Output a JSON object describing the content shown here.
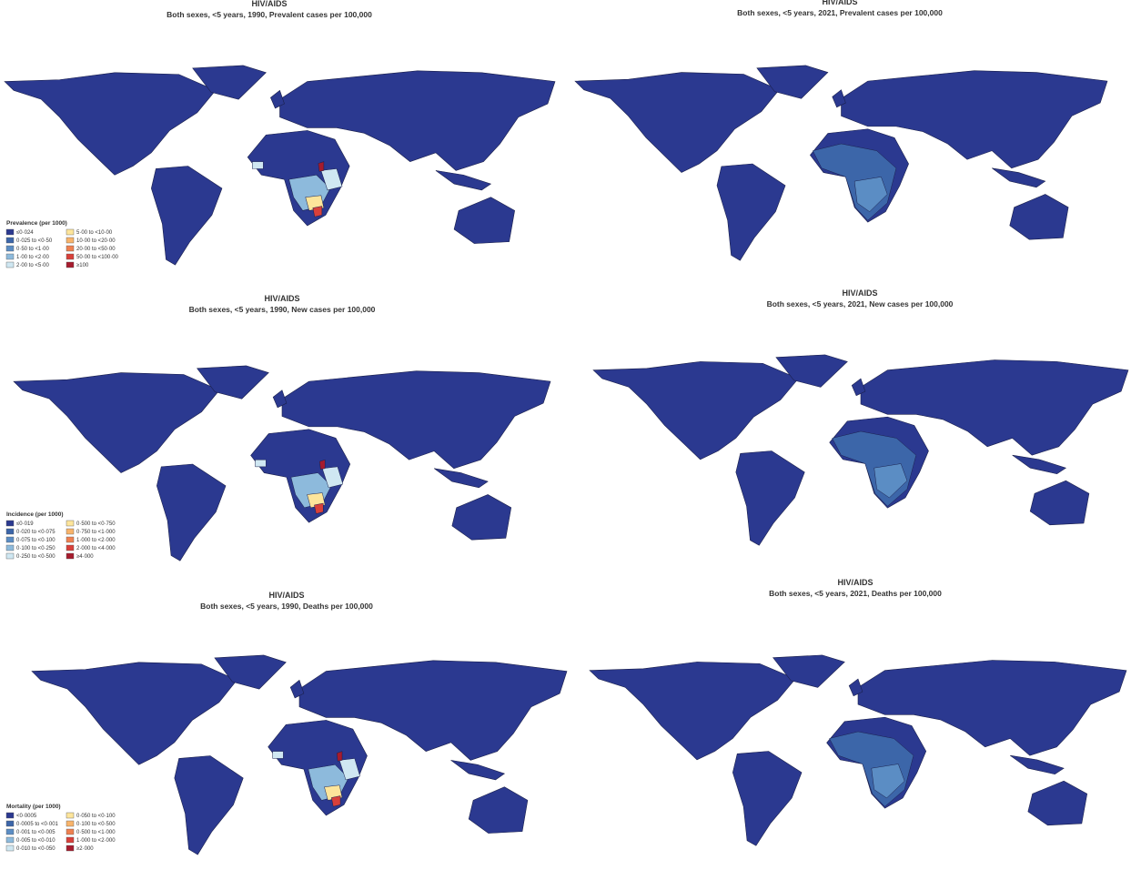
{
  "panels": [
    {
      "title": "HIV/AIDS",
      "subtitle": "Both sexes, <5 years, 1990, Prevalent cases per 100,000",
      "legend": {
        "title": "Prevalence (per 1000)",
        "items": [
          {
            "label": "≤0·024",
            "color": "#2b3990"
          },
          {
            "label": "0·025 to <0·50",
            "color": "#3c66a9"
          },
          {
            "label": "0·50 to <1·00",
            "color": "#5b8dc4"
          },
          {
            "label": "1·00 to <2·00",
            "color": "#8dbadc"
          },
          {
            "label": "2·00 to <5·00",
            "color": "#cfe7f2"
          },
          {
            "label": "5·00 to <10·00",
            "color": "#fde59b"
          },
          {
            "label": "10·00 to <20·00",
            "color": "#f8b46b"
          },
          {
            "label": "20·00 to <50·00",
            "color": "#ef8150"
          },
          {
            "label": "50·00 to <100·00",
            "color": "#d8403a"
          },
          {
            "label": "≥100",
            "color": "#a61b2d"
          }
        ]
      }
    },
    {
      "title": "HIV/AIDS",
      "subtitle": "Both sexes, <5 years, 2021, Prevalent cases per 100,000"
    },
    {
      "title": "HIV/AIDS",
      "subtitle": "Both sexes, <5 years, 1990, New cases per 100,000",
      "legend": {
        "title": "Incidence (per 1000)",
        "items": [
          {
            "label": "≤0·019",
            "color": "#2b3990"
          },
          {
            "label": "0·020 to <0·075",
            "color": "#3c66a9"
          },
          {
            "label": "0·075 to <0·100",
            "color": "#5b8dc4"
          },
          {
            "label": "0·100 to <0·250",
            "color": "#8dbadc"
          },
          {
            "label": "0·250 to <0·500",
            "color": "#cfe7f2"
          },
          {
            "label": "0·500 to <0·750",
            "color": "#fde59b"
          },
          {
            "label": "0·750 to <1·000",
            "color": "#f8b46b"
          },
          {
            "label": "1·000 to <2·000",
            "color": "#ef8150"
          },
          {
            "label": "2·000 to <4·000",
            "color": "#d8403a"
          },
          {
            "label": "≥4·000",
            "color": "#a61b2d"
          }
        ]
      }
    },
    {
      "title": "HIV/AIDS",
      "subtitle": "Both sexes, <5 years, 2021, New cases per 100,000"
    },
    {
      "title": "HIV/AIDS",
      "subtitle": "Both sexes, <5 years, 1990, Deaths per 100,000",
      "legend": {
        "title": "Mortality (per 1000)",
        "items": [
          {
            "label": "<0·0005",
            "color": "#2b3990"
          },
          {
            "label": "0·0005 to <0·001",
            "color": "#3c66a9"
          },
          {
            "label": "0·001 to <0·005",
            "color": "#5b8dc4"
          },
          {
            "label": "0·005 to <0·010",
            "color": "#8dbadc"
          },
          {
            "label": "0·010 to <0·050",
            "color": "#cfe7f2"
          },
          {
            "label": "0·050 to <0·100",
            "color": "#fde59b"
          },
          {
            "label": "0·100 to <0·500",
            "color": "#f8b46b"
          },
          {
            "label": "0·500 to <1·000",
            "color": "#ef8150"
          },
          {
            "label": "1·000 to <2·000",
            "color": "#d8403a"
          },
          {
            "label": "≥2·000",
            "color": "#a61b2d"
          }
        ]
      }
    },
    {
      "title": "HIV/AIDS",
      "subtitle": "Both sexes, <5 years, 2021, Deaths per 100,000"
    }
  ]
}
